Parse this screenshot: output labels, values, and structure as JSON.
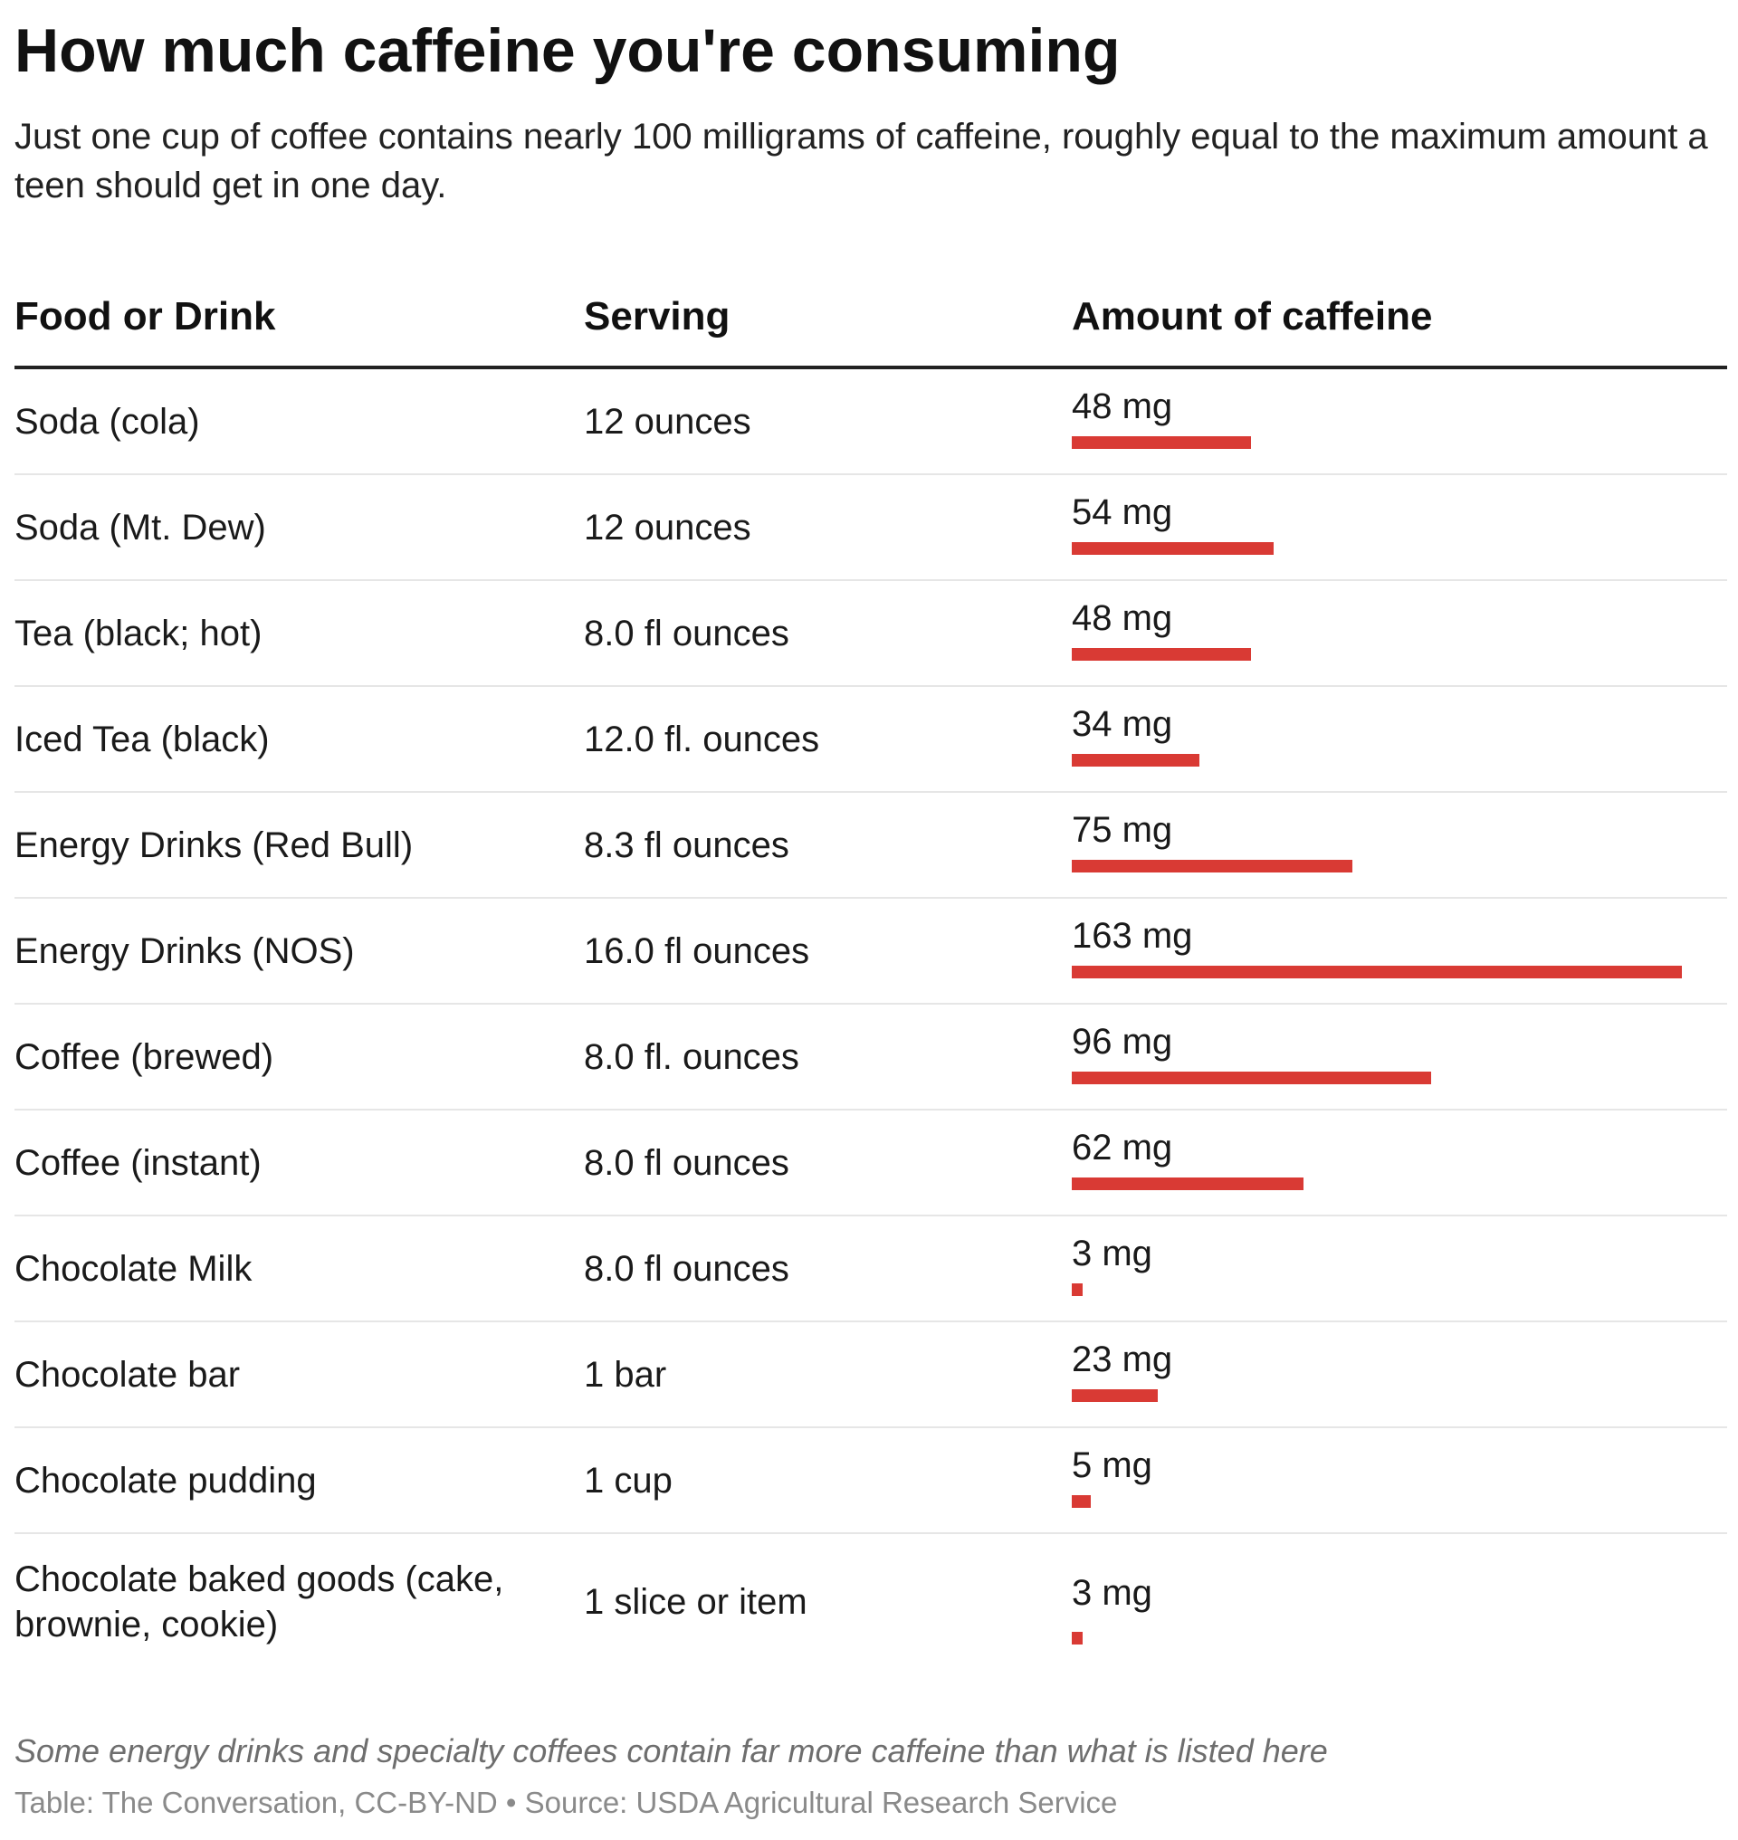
{
  "title": "How much caffeine you're consuming",
  "subtitle": "Just one cup of coffee contains nearly 100 milligrams of caffeine, roughly equal to the maximum amount a teen should get in one day.",
  "headers": {
    "food": "Food or Drink",
    "serving": "Serving",
    "amount": "Amount of caffeine"
  },
  "rows": [
    {
      "food": "Soda (cola)",
      "serving": "12 ounces",
      "amount_label": "48 mg",
      "amount": 48
    },
    {
      "food": "Soda (Mt. Dew)",
      "serving": "12 ounces",
      "amount_label": "54 mg",
      "amount": 54
    },
    {
      "food": "Tea (black; hot)",
      "serving": "8.0 fl ounces",
      "amount_label": "48 mg",
      "amount": 48
    },
    {
      "food": "Iced Tea (black)",
      "serving": "12.0 fl. ounces",
      "amount_label": "34 mg",
      "amount": 34
    },
    {
      "food": "Energy Drinks (Red Bull)",
      "serving": "8.3 fl ounces",
      "amount_label": "75 mg",
      "amount": 75
    },
    {
      "food": "Energy Drinks (NOS)",
      "serving": "16.0 fl ounces",
      "amount_label": "163 mg",
      "amount": 163
    },
    {
      "food": "Coffee (brewed)",
      "serving": "8.0 fl. ounces",
      "amount_label": "96 mg",
      "amount": 96
    },
    {
      "food": "Coffee (instant)",
      "serving": "8.0 fl ounces",
      "amount_label": "62 mg",
      "amount": 62
    },
    {
      "food": "Chocolate Milk",
      "serving": "8.0 fl ounces",
      "amount_label": "3 mg",
      "amount": 3
    },
    {
      "food": "Chocolate bar",
      "serving": "1 bar",
      "amount_label": "23 mg",
      "amount": 23
    },
    {
      "food": "Chocolate pudding",
      "serving": "1 cup",
      "amount_label": "5 mg",
      "amount": 5
    },
    {
      "food": "Chocolate baked goods (cake, brownie, cookie)",
      "serving": "1 slice or item",
      "amount_label": "3 mg",
      "amount": 3
    }
  ],
  "note": "Some energy drinks and specialty coffees contain far more caffeine than what is listed here",
  "credit": "Table: The Conversation, CC-BY-ND • Source: USDA Agricultural Research Service",
  "colors": {
    "bar": "#d93a34"
  },
  "chart_data": {
    "type": "table",
    "title": "How much caffeine you're consuming",
    "subtitle": "Just one cup of coffee contains nearly 100 milligrams of caffeine, roughly equal to the maximum amount a teen should get in one day.",
    "columns": [
      "Food or Drink",
      "Serving",
      "Amount of caffeine"
    ],
    "categories": [
      "Soda (cola)",
      "Soda (Mt. Dew)",
      "Tea (black; hot)",
      "Iced Tea (black)",
      "Energy Drinks (Red Bull)",
      "Energy Drinks (NOS)",
      "Coffee (brewed)",
      "Coffee (instant)",
      "Chocolate Milk",
      "Chocolate bar",
      "Chocolate pudding",
      "Chocolate baked goods (cake, brownie, cookie)"
    ],
    "series": [
      {
        "name": "Amount of caffeine (mg)",
        "values": [
          48,
          54,
          48,
          34,
          75,
          163,
          96,
          62,
          3,
          23,
          5,
          3
        ]
      }
    ],
    "xlim": [
      0,
      163
    ],
    "unit": "mg"
  }
}
